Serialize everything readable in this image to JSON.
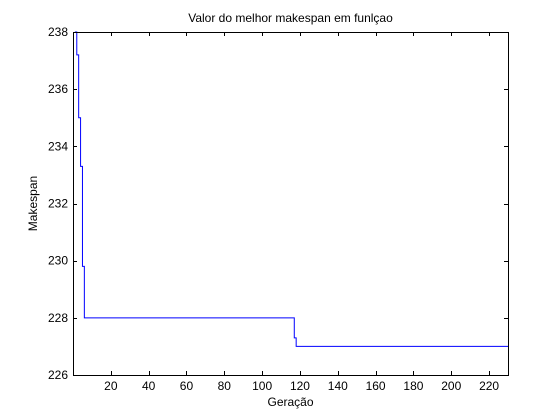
{
  "chart_data": {
    "type": "line",
    "title": "Valor do melhor makespan em funlçao",
    "xlabel": "Geração",
    "ylabel": "Makespan",
    "xlim": [
      0,
      230
    ],
    "ylim": [
      226,
      238
    ],
    "xticks": [
      20,
      40,
      60,
      80,
      100,
      120,
      140,
      160,
      180,
      200,
      220
    ],
    "yticks": [
      226,
      228,
      230,
      232,
      234,
      236,
      238
    ],
    "grid": false,
    "series": [
      {
        "name": "makespan",
        "color": "#0000ff",
        "step": true,
        "x": [
          1,
          2,
          3,
          4,
          5,
          6,
          7,
          116,
          117,
          118,
          119,
          230
        ],
        "y": [
          238,
          237.2,
          235,
          233.3,
          229.8,
          228,
          228,
          228,
          227.3,
          227,
          227,
          227
        ]
      }
    ]
  }
}
